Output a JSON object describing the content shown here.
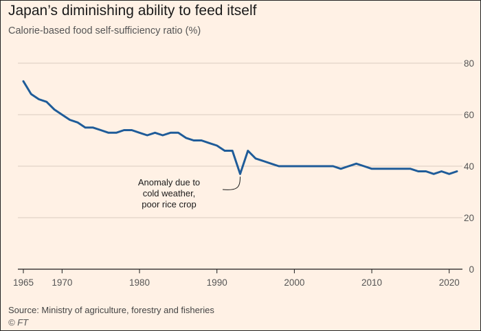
{
  "header": {
    "title": "Japan’s diminishing ability to feed itself",
    "subtitle": "Calorie-based food self-sufficiency ratio (%)"
  },
  "footer": {
    "source": "Source: Ministry of agriculture, forestry and fisheries",
    "credit": "© FT"
  },
  "colors": {
    "background": "#FFF1E5",
    "line": "#1F5C99",
    "grid": "#D9CCC0",
    "axis": "#1a1a1a"
  },
  "chart_data": {
    "type": "line",
    "title": "Japan’s diminishing ability to feed itself",
    "subtitle": "Calorie-based food self-sufficiency ratio (%)",
    "xlabel": "",
    "ylabel": "",
    "xlim": [
      1965,
      2021
    ],
    "ylim": [
      0,
      80
    ],
    "x_ticks": [
      1965,
      1970,
      1980,
      1990,
      2000,
      2010,
      2020
    ],
    "y_ticks": [
      0,
      20,
      40,
      60,
      80
    ],
    "grid": "horizontal",
    "y_axis_side": "right",
    "series": [
      {
        "x": [
          1965,
          1966,
          1967,
          1968,
          1969,
          1970,
          1971,
          1972,
          1973,
          1974,
          1975,
          1976,
          1977,
          1978,
          1979,
          1980,
          1981,
          1982,
          1983,
          1984,
          1985,
          1986,
          1987,
          1988,
          1989,
          1990,
          1991,
          1992,
          1993,
          1994,
          1995,
          1996,
          1997,
          1998,
          1999,
          2000,
          2001,
          2002,
          2003,
          2004,
          2005,
          2006,
          2007,
          2008,
          2009,
          2010,
          2011,
          2012,
          2013,
          2014,
          2015,
          2016,
          2017,
          2018,
          2019,
          2020,
          2021
        ],
        "y": [
          73,
          68,
          66,
          65,
          62,
          60,
          58,
          57,
          55,
          55,
          54,
          53,
          53,
          54,
          54,
          53,
          52,
          53,
          52,
          53,
          53,
          51,
          50,
          50,
          49,
          48,
          46,
          46,
          37,
          46,
          43,
          42,
          41,
          40,
          40,
          40,
          40,
          40,
          40,
          40,
          40,
          39,
          40,
          41,
          40,
          39,
          39,
          39,
          39,
          39,
          39,
          38,
          38,
          37,
          38,
          37,
          38
        ]
      }
    ],
    "annotations": [
      {
        "lines": [
          "Anomaly due to",
          "cold weather,",
          "poor rice crop"
        ],
        "x": 1993,
        "y": 37
      }
    ]
  }
}
